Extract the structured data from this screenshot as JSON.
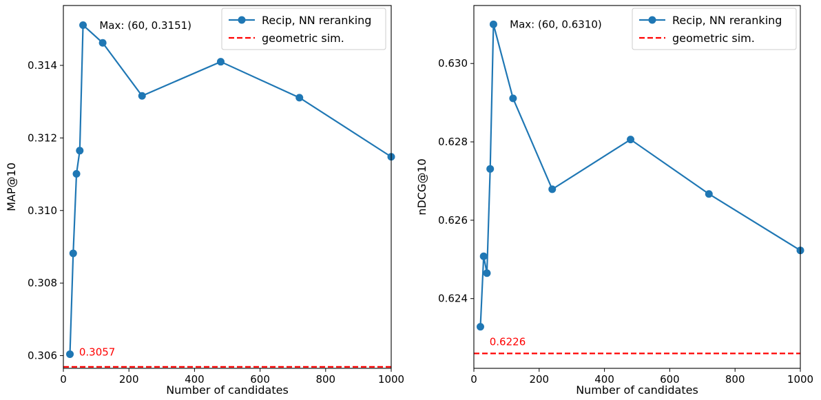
{
  "chart_data": [
    {
      "type": "line",
      "xlabel": "Number of candidates",
      "ylabel": "MAP@10",
      "xlim": [
        0,
        1000
      ],
      "ylim": [
        0.30565,
        0.31565
      ],
      "x_ticks": [
        0,
        200,
        400,
        600,
        800,
        1000
      ],
      "x_tick_labels": [
        "0",
        "200",
        "400",
        "600",
        "800",
        "1000"
      ],
      "y_ticks": [
        0.306,
        0.308,
        0.31,
        0.312,
        0.314
      ],
      "y_tick_labels": [
        "0.306",
        "0.308",
        "0.310",
        "0.312",
        "0.314"
      ],
      "grid": false,
      "legend_position": "top-right",
      "series": [
        {
          "name": "Recip, NN reranking",
          "color": "#1f77b4",
          "style": "solid-marker",
          "x": [
            20,
            30,
            40,
            50,
            60,
            120,
            240,
            480,
            720,
            1000
          ],
          "values": [
            0.30604,
            0.30882,
            0.31101,
            0.31165,
            0.31511,
            0.31462,
            0.31316,
            0.3141,
            0.31311,
            0.31148
          ]
        },
        {
          "name": "geometric sim.",
          "color": "#ff0000",
          "style": "dashed",
          "x": [
            0,
            1000
          ],
          "values": [
            0.30569,
            0.30569
          ]
        }
      ],
      "annotations": [
        {
          "text": "Max: (60, 0.3151)",
          "x": 110,
          "y": 0.3151
        },
        {
          "text": "0.3057",
          "x": 48,
          "y": 0.3061,
          "color": "#ff0000"
        }
      ]
    },
    {
      "type": "line",
      "xlabel": "Number of candidates",
      "ylabel": "nDCG@10",
      "xlim": [
        0,
        1000
      ],
      "ylim": [
        0.62222,
        0.63148
      ],
      "x_ticks": [
        0,
        200,
        400,
        600,
        800,
        1000
      ],
      "x_tick_labels": [
        "0",
        "200",
        "400",
        "600",
        "800",
        "1000"
      ],
      "y_ticks": [
        0.624,
        0.626,
        0.628,
        0.63
      ],
      "y_tick_labels": [
        "0.624",
        "0.626",
        "0.628",
        "0.630"
      ],
      "grid": false,
      "legend_position": "top-right",
      "series": [
        {
          "name": "Recip, NN reranking",
          "color": "#1f77b4",
          "style": "solid-marker",
          "x": [
            20,
            30,
            40,
            50,
            60,
            120,
            240,
            480,
            720,
            1000
          ],
          "values": [
            0.62328,
            0.62508,
            0.62465,
            0.62731,
            0.631,
            0.62911,
            0.62679,
            0.62806,
            0.62667,
            0.62523
          ]
        },
        {
          "name": "geometric sim.",
          "color": "#ff0000",
          "style": "dashed",
          "x": [
            0,
            1000
          ],
          "values": [
            0.6226,
            0.6226
          ]
        }
      ],
      "annotations": [
        {
          "text": "Max: (60, 0.6310)",
          "x": 110,
          "y": 0.631
        },
        {
          "text": "0.6226",
          "x": 48,
          "y": 0.6229,
          "color": "#ff0000"
        }
      ]
    }
  ]
}
